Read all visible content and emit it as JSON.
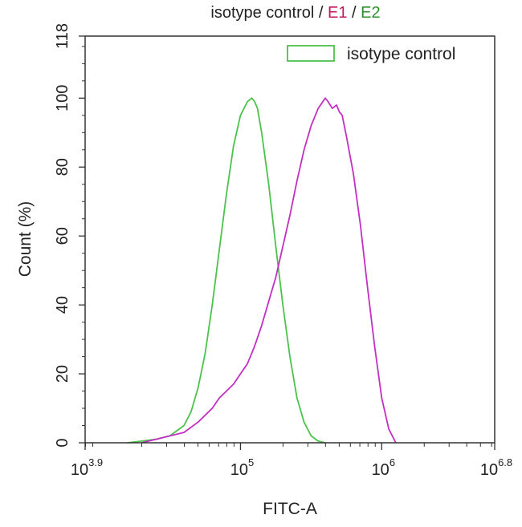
{
  "chart_data": {
    "type": "line",
    "title": {
      "parts": [
        {
          "text": "isotype control",
          "color": "#222222"
        },
        {
          "text": " / ",
          "color": "#222222"
        },
        {
          "text": "E1",
          "color": "#c0185a"
        },
        {
          "text": " / ",
          "color": "#222222"
        },
        {
          "text": "E2",
          "color": "#2f8f2f"
        }
      ]
    },
    "xlabel": "FITC-A",
    "ylabel": "Count (%)",
    "x_scale": "log10",
    "xlim": [
      3.9,
      6.8
    ],
    "ylim": [
      0,
      118
    ],
    "x_ticks": [
      {
        "base": "10",
        "exp": "3.9",
        "value": 3.9
      },
      {
        "base": "10",
        "exp": "5",
        "value": 5
      },
      {
        "base": "10",
        "exp": "6",
        "value": 6
      },
      {
        "base": "10",
        "exp": "6.8",
        "value": 6.8
      }
    ],
    "y_ticks": [
      0,
      20,
      40,
      60,
      80,
      100,
      118
    ],
    "grid": false,
    "legend": {
      "placement": "top-right",
      "entries": [
        "isotype control"
      ]
    },
    "series": [
      {
        "name": "isotype control",
        "color": "#4cc24c",
        "x": [
          4.2,
          4.3,
          4.4,
          4.5,
          4.6,
          4.65,
          4.7,
          4.75,
          4.8,
          4.85,
          4.9,
          4.95,
          5.0,
          5.05,
          5.08,
          5.1,
          5.12,
          5.15,
          5.2,
          5.25,
          5.3,
          5.35,
          5.4,
          5.45,
          5.5,
          5.55,
          5.6
        ],
        "y": [
          0,
          0.5,
          1,
          2,
          5,
          9,
          16,
          26,
          40,
          56,
          72,
          86,
          95,
          99,
          100,
          99,
          97,
          90,
          75,
          57,
          40,
          25,
          13,
          6,
          2,
          0.5,
          0
        ]
      },
      {
        "name": "",
        "color": "#c22fc2",
        "x": [
          4.3,
          4.4,
          4.5,
          4.6,
          4.7,
          4.8,
          4.85,
          4.9,
          4.95,
          5.0,
          5.05,
          5.1,
          5.15,
          5.2,
          5.25,
          5.3,
          5.35,
          5.4,
          5.45,
          5.5,
          5.55,
          5.6,
          5.62,
          5.65,
          5.68,
          5.7,
          5.72,
          5.75,
          5.8,
          5.85,
          5.9,
          5.95,
          6.0,
          6.05,
          6.1
        ],
        "y": [
          0,
          1,
          2,
          3,
          6,
          10,
          13,
          15,
          17,
          20,
          23,
          28,
          34,
          41,
          48,
          57,
          66,
          76,
          85,
          92,
          97,
          100,
          99,
          97,
          98,
          96,
          95,
          89,
          78,
          63,
          45,
          28,
          13,
          4,
          0
        ]
      }
    ]
  }
}
